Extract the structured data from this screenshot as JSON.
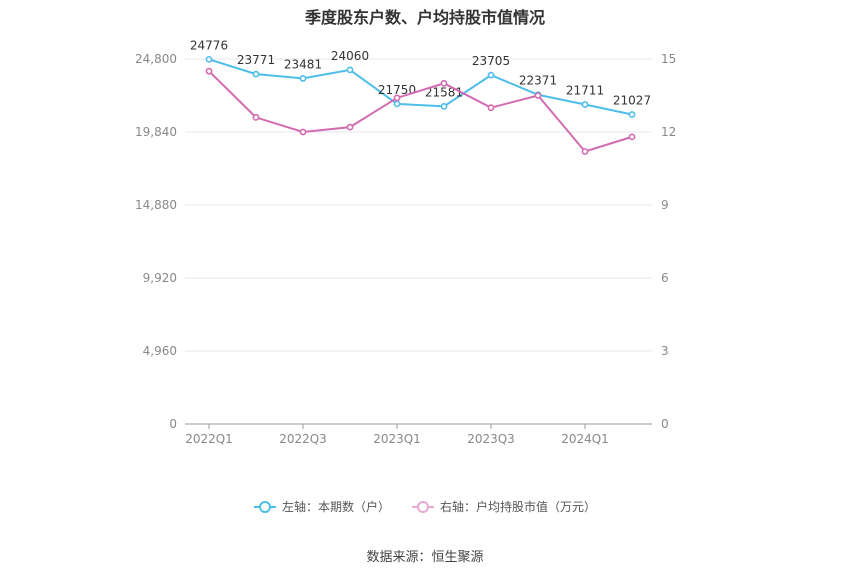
{
  "chart_data": {
    "type": "line",
    "title": "季度股东户数、户均持股市值情况",
    "categories": [
      "2022Q1",
      "2022Q2",
      "2022Q3",
      "2022Q4",
      "2023Q1",
      "2023Q2",
      "2023Q3",
      "2023Q4",
      "2024Q1",
      "2024Q2"
    ],
    "x_tick_labels": [
      "2022Q1",
      "2022Q3",
      "2023Q1",
      "2023Q3",
      "2024Q1"
    ],
    "left_axis": {
      "min": 0,
      "max": 24800,
      "ticks": [
        0,
        4960,
        9920,
        14880,
        19840,
        24800
      ],
      "tick_labels": [
        "0",
        "4,960",
        "9,920",
        "14,880",
        "19,840",
        "24,800"
      ]
    },
    "right_axis": {
      "min": 0,
      "max": 15,
      "ticks": [
        0,
        3,
        6,
        9,
        12,
        15
      ],
      "tick_labels": [
        "0",
        "3",
        "6",
        "9",
        "12",
        "15"
      ]
    },
    "series": [
      {
        "name": "左轴：本期数（户）",
        "axis": "left",
        "color": "#4dbdea",
        "values": [
          24776,
          23771,
          23481,
          24060,
          21750,
          21581,
          23705,
          22371,
          21711,
          21027
        ],
        "labels": [
          "24776",
          "23771",
          "23481",
          "24060",
          "21750",
          "21581",
          "23705",
          "22371",
          "21711",
          "21027"
        ]
      },
      {
        "name": "右轴：户均持股市值（万元）",
        "axis": "right",
        "color": "#d36bb0",
        "values": [
          14.5,
          12.6,
          12.0,
          12.2,
          13.4,
          14.0,
          13.0,
          13.5,
          11.2,
          11.8
        ]
      }
    ],
    "grid": true,
    "legend_position": "bottom"
  },
  "source": "数据来源：恒生聚源"
}
